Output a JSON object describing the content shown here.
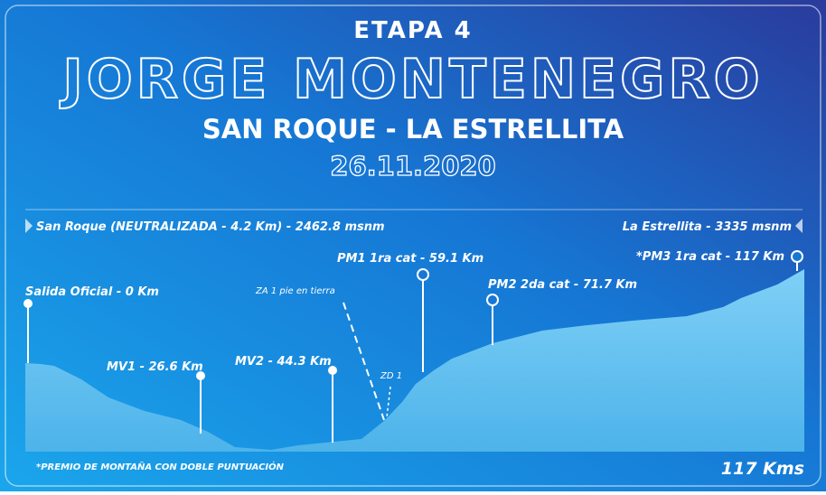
{
  "header": {
    "stage": "ETAPA 4",
    "name": "JORGE MONTENEGRO",
    "route": "SAN ROQUE - LA ESTRELLITA",
    "date": "26.11.2020"
  },
  "start_label": "San Roque (NEUTRALIZADA - 4.2 Km) - 2462.8 msnm",
  "end_label": "La Estrellita - 3335 msnm",
  "points": [
    {
      "label": "Salida Oficial - 0 Km"
    },
    {
      "label": "MV1 - 26.6 Km"
    },
    {
      "label": "MV2 - 44.3 Km"
    },
    {
      "label": "ZA 1 pie en tierra"
    },
    {
      "label": "ZD 1"
    },
    {
      "label": "PM1 1ra cat - 59.1 Km"
    },
    {
      "label": "PM2 2da cat - 71.7 Km"
    },
    {
      "label": "*PM3 1ra cat - 117 Km"
    }
  ],
  "footnote": "*PREMIO DE MONTAÑA CON DOBLE PUNTUACIÓN",
  "distance": "117 Kms"
}
